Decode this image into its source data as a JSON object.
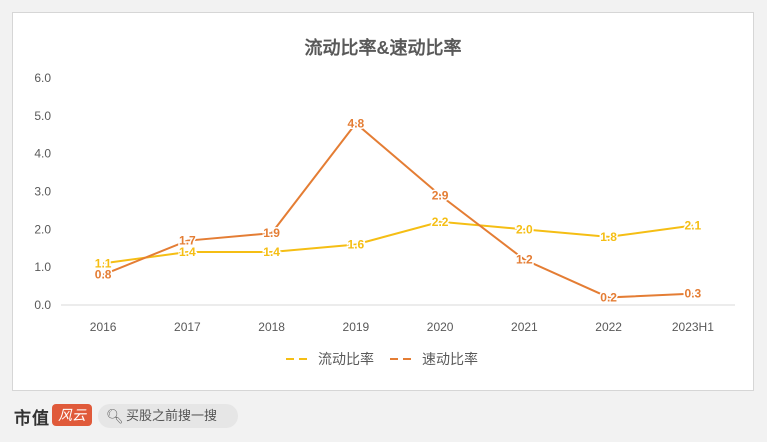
{
  "brand": {
    "name": "市值",
    "logo_text": "风云"
  },
  "search": {
    "text": "买股之前搜一搜"
  },
  "chart_data": {
    "type": "line",
    "title": "流动比率&速动比率",
    "categories": [
      "2016",
      "2017",
      "2018",
      "2019",
      "2020",
      "2021",
      "2022",
      "2023H1"
    ],
    "series": [
      {
        "name": "流动比率",
        "values": [
          1.1,
          1.4,
          1.4,
          1.6,
          2.2,
          2.0,
          1.8,
          2.1
        ],
        "color": "#f5be14"
      },
      {
        "name": "速动比率",
        "values": [
          0.8,
          1.7,
          1.9,
          4.8,
          2.9,
          1.2,
          0.2,
          0.3
        ],
        "color": "#e47d34"
      }
    ],
    "labels": {
      "流动比率": [
        "1.1",
        "1.4",
        "1.4",
        "1.6",
        "2.2",
        "2.0",
        "1.8",
        "2.1"
      ],
      "速动比率": [
        "0.8",
        "1.7",
        "1.9",
        "4.8",
        "2.9",
        "1.2",
        "0.2",
        "0.3"
      ]
    },
    "yticks": [
      "0.0",
      "1.0",
      "2.0",
      "3.0",
      "4.0",
      "5.0",
      "6.0"
    ],
    "ylim": [
      0,
      6
    ],
    "grid": false,
    "legend": "bottom"
  }
}
